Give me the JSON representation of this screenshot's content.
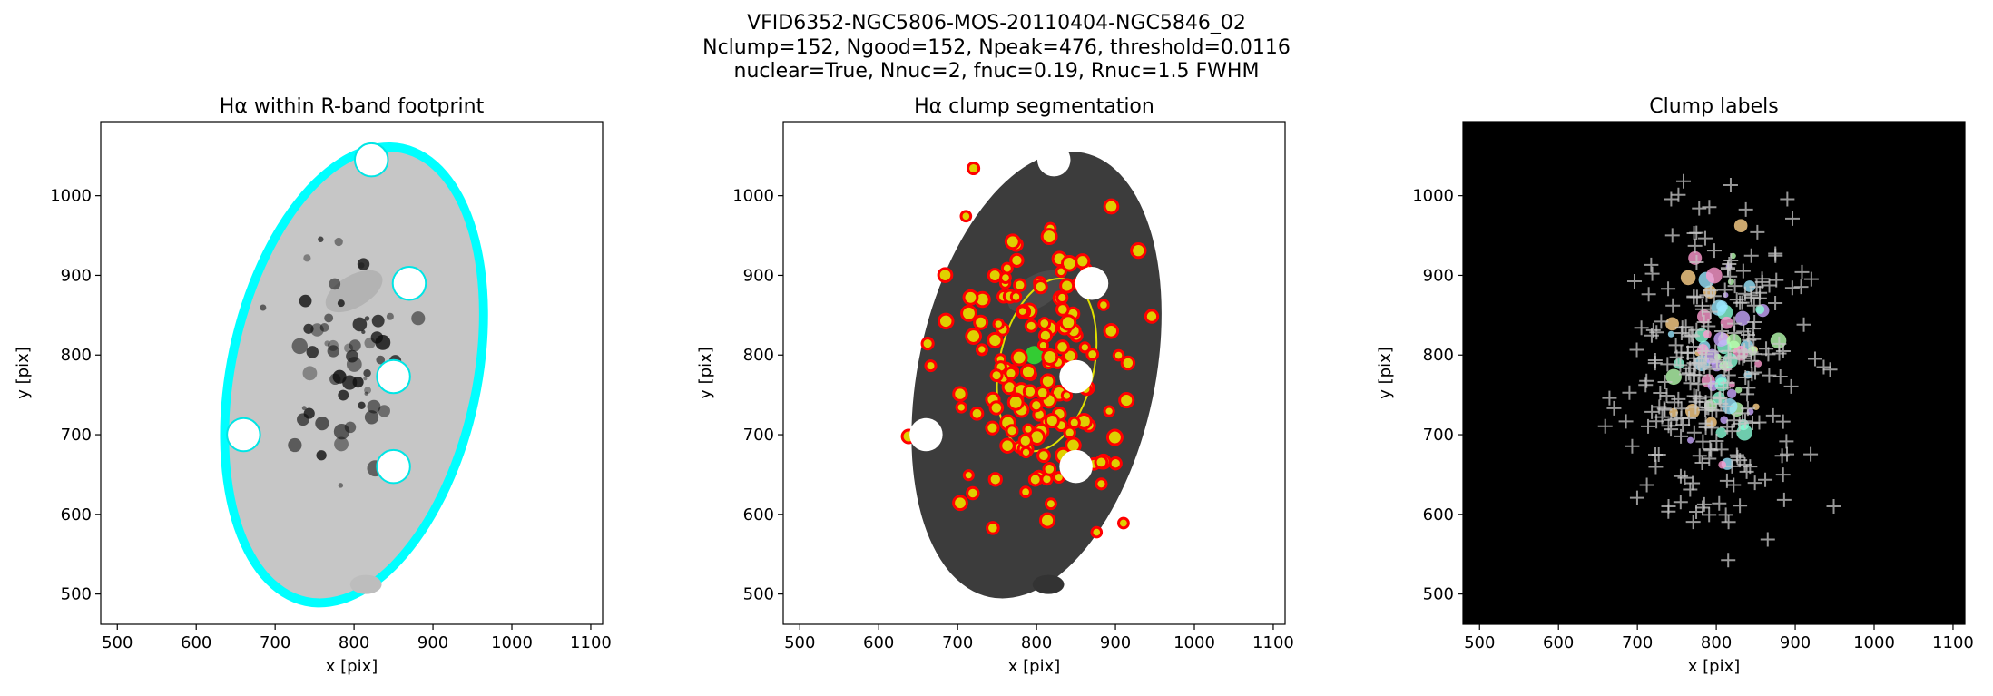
{
  "suptitle": [
    "VFID6352-NGC5806-MOS-20110404-NGC5846_02",
    "Nclump=152, Ngood=152, Npeak=476, threshold=0.0116",
    "nuclear=True, Nnuc=2, fnuc=0.19, Rnuc=1.5 FWHM"
  ],
  "chart_data": [
    {
      "type": "image",
      "title": "Hα within R-band footprint",
      "xlabel": "x [pix]",
      "ylabel": "y [pix]",
      "facecolor": "#ffffff",
      "xlim": [
        479,
        1115
      ],
      "ylim": [
        462,
        1093
      ],
      "xticks": [
        500,
        600,
        700,
        800,
        900,
        1000,
        1100
      ],
      "yticks": [
        500,
        600,
        700,
        800,
        900,
        1000
      ]
    },
    {
      "type": "image",
      "title": "Hα clump segmentation",
      "xlabel": "x [pix]",
      "ylabel": "y [pix]",
      "facecolor": "#ffffff",
      "xlim": [
        479,
        1115
      ],
      "ylim": [
        462,
        1093
      ],
      "xticks": [
        500,
        600,
        700,
        800,
        900,
        1000,
        1100
      ],
      "yticks": [
        500,
        600,
        700,
        800,
        900,
        1000
      ]
    },
    {
      "type": "image",
      "title": "Clump labels",
      "xlabel": "x [pix]",
      "ylabel": "y [pix]",
      "facecolor": "#000000",
      "xlim": [
        479,
        1115
      ],
      "ylim": [
        462,
        1093
      ],
      "xticks": [
        500,
        600,
        700,
        800,
        900,
        1000,
        1100
      ],
      "yticks": [
        500,
        600,
        700,
        800,
        900,
        1000
      ]
    }
  ]
}
